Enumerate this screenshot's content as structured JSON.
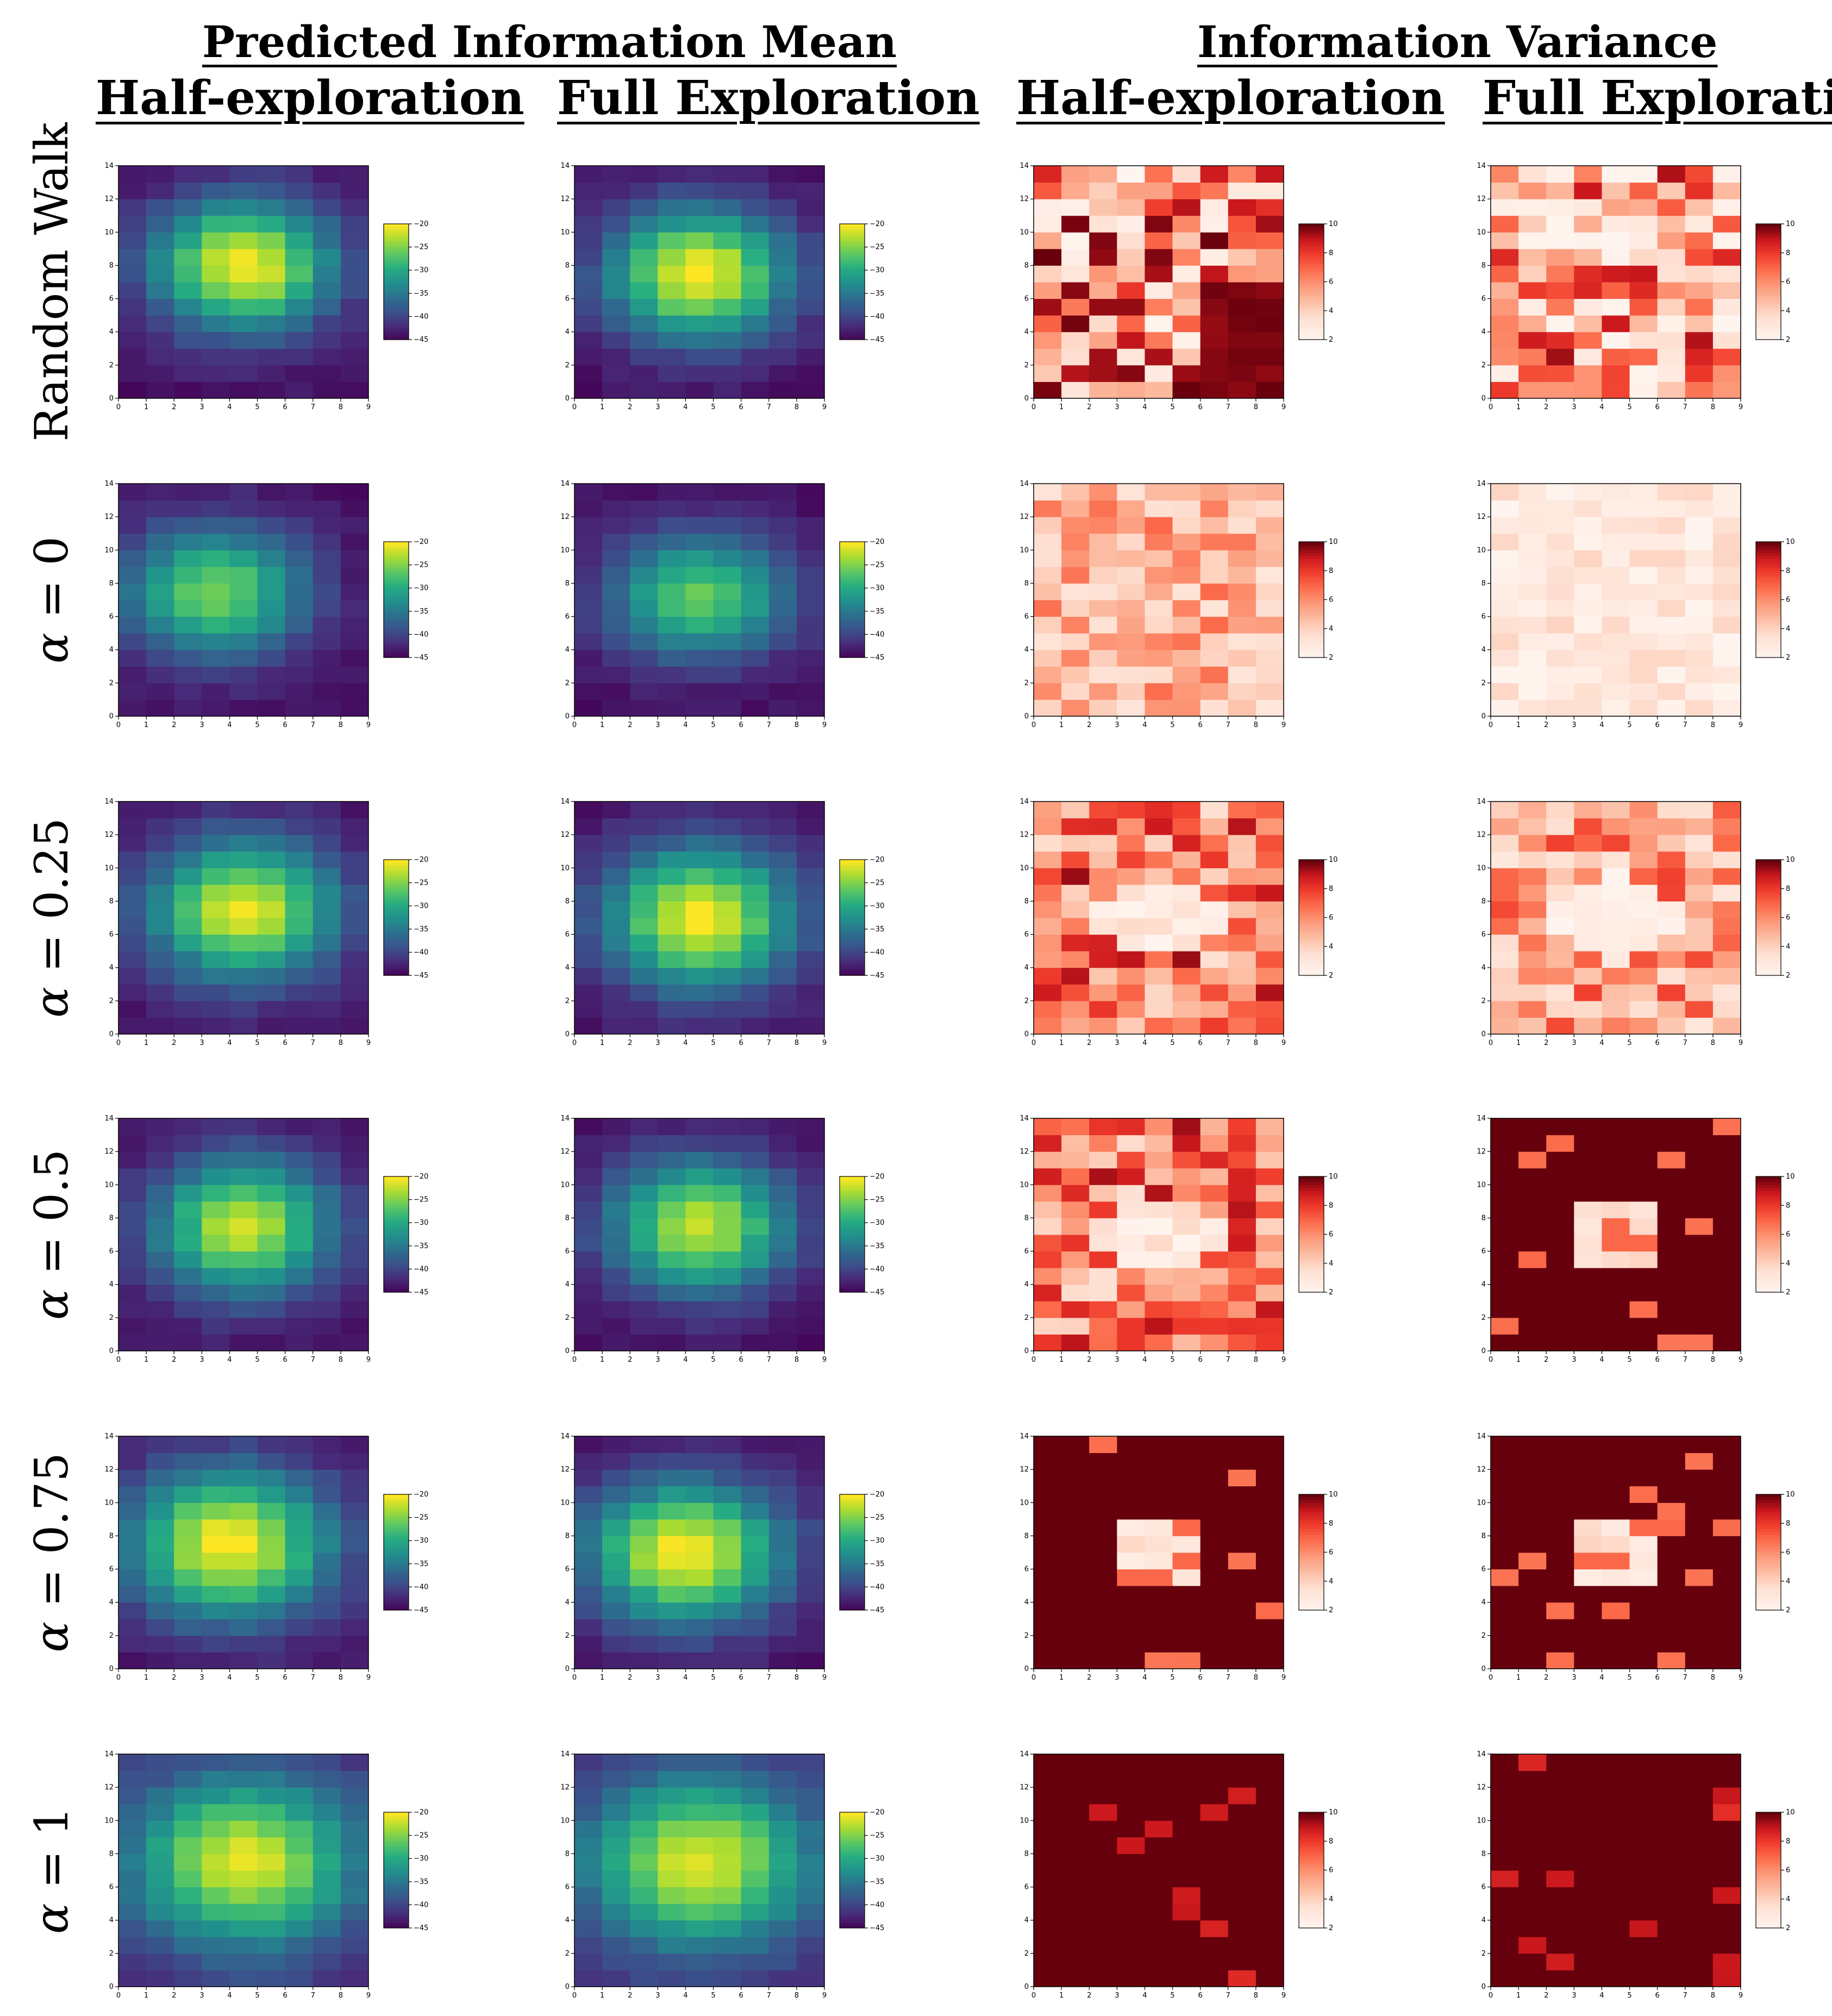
{
  "headers": {
    "group_mean": "Predicted Information Mean",
    "group_variance": "Information Variance",
    "columns": [
      "Half-exploration",
      "Full Exploration",
      "Half-exploration",
      "Full Exploration"
    ]
  },
  "row_labels": [
    {
      "prefix": "",
      "symbol": "",
      "text": "Random Walk"
    },
    {
      "prefix": "",
      "symbol": "α",
      "text": " = 0"
    },
    {
      "prefix": "",
      "symbol": "α",
      "text": " = 0.25"
    },
    {
      "prefix": "",
      "symbol": "α",
      "text": " = 0.5"
    },
    {
      "prefix": "",
      "symbol": "α",
      "text": " = 0.75"
    },
    {
      "prefix": "",
      "symbol": "α",
      "text": " = 1"
    }
  ],
  "chart_data": {
    "type": "heatmap",
    "grid": {
      "nx": 9,
      "ny": 14
    },
    "x_ticks": [
      0,
      1,
      2,
      3,
      4,
      5,
      6,
      7,
      8,
      9
    ],
    "y_ticks": [
      0,
      2,
      4,
      6,
      8,
      10,
      12,
      14
    ],
    "mean_colorbar": {
      "colormap": "viridis",
      "range": [
        -45,
        -20
      ],
      "ticks": [
        "−20",
        "−25",
        "−30",
        "−35",
        "−40",
        "−45"
      ],
      "tick_values": [
        -20,
        -25,
        -30,
        -35,
        -40,
        -45
      ]
    },
    "variance_colorbar": {
      "colormap": "Reds",
      "range": [
        2,
        10
      ],
      "ticks": [
        "10",
        "8",
        "6",
        "4",
        "2"
      ],
      "tick_values": [
        10,
        8,
        6,
        4,
        2
      ]
    },
    "mean_panels": [
      {
        "row": 0,
        "col": 0,
        "peak": -20,
        "cx": 4.5,
        "cy": 8.0,
        "sx": 2.3,
        "sy": 2.8,
        "edge": -44
      },
      {
        "row": 0,
        "col": 1,
        "peak": -20,
        "cx": 4.5,
        "cy": 7.5,
        "sx": 2.3,
        "sy": 2.8,
        "edge": -44
      },
      {
        "row": 1,
        "col": 0,
        "peak": -25,
        "cx": 3.5,
        "cy": 7.5,
        "sx": 2.3,
        "sy": 2.8,
        "edge": -44
      },
      {
        "row": 1,
        "col": 1,
        "peak": -26,
        "cx": 4.5,
        "cy": 7.2,
        "sx": 2.3,
        "sy": 2.6,
        "edge": -44
      },
      {
        "row": 2,
        "col": 0,
        "peak": -21,
        "cx": 4.5,
        "cy": 7.5,
        "sx": 2.4,
        "sy": 3.0,
        "edge": -44
      },
      {
        "row": 2,
        "col": 1,
        "peak": -20,
        "cx": 4.5,
        "cy": 7.0,
        "sx": 2.4,
        "sy": 3.0,
        "edge": -44
      },
      {
        "row": 3,
        "col": 0,
        "peak": -22,
        "cx": 4.5,
        "cy": 7.5,
        "sx": 2.3,
        "sy": 2.9,
        "edge": -44
      },
      {
        "row": 3,
        "col": 1,
        "peak": -22,
        "cx": 4.5,
        "cy": 7.5,
        "sx": 2.3,
        "sy": 2.8,
        "edge": -44
      },
      {
        "row": 4,
        "col": 0,
        "peak": -20,
        "cx": 4.0,
        "cy": 7.5,
        "sx": 2.6,
        "sy": 3.2,
        "edge": -44
      },
      {
        "row": 4,
        "col": 1,
        "peak": -20,
        "cx": 4.0,
        "cy": 7.0,
        "sx": 2.5,
        "sy": 3.0,
        "edge": -44
      },
      {
        "row": 5,
        "col": 0,
        "peak": -21,
        "cx": 4.5,
        "cy": 7.5,
        "sx": 2.8,
        "sy": 3.5,
        "edge": -42
      },
      {
        "row": 5,
        "col": 1,
        "peak": -21,
        "cx": 4.5,
        "cy": 7.5,
        "sx": 2.8,
        "sy": 3.5,
        "edge": -42
      }
    ],
    "variance_panels": [
      {
        "row": 0,
        "col": 2,
        "pattern": "mixed-dark"
      },
      {
        "row": 0,
        "col": 3,
        "pattern": "mixed-light"
      },
      {
        "row": 1,
        "col": 2,
        "pattern": "uniform-mid"
      },
      {
        "row": 1,
        "col": 3,
        "pattern": "uniform-light"
      },
      {
        "row": 2,
        "col": 2,
        "pattern": "ring"
      },
      {
        "row": 2,
        "col": 3,
        "pattern": "ring-light"
      },
      {
        "row": 3,
        "col": 2,
        "pattern": "ring"
      },
      {
        "row": 3,
        "col": 3,
        "pattern": "saturated-hole"
      },
      {
        "row": 4,
        "col": 2,
        "pattern": "saturated-hole"
      },
      {
        "row": 4,
        "col": 3,
        "pattern": "saturated-hole"
      },
      {
        "row": 5,
        "col": 2,
        "pattern": "saturated-sparse"
      },
      {
        "row": 5,
        "col": 3,
        "pattern": "saturated-sparse"
      }
    ]
  }
}
